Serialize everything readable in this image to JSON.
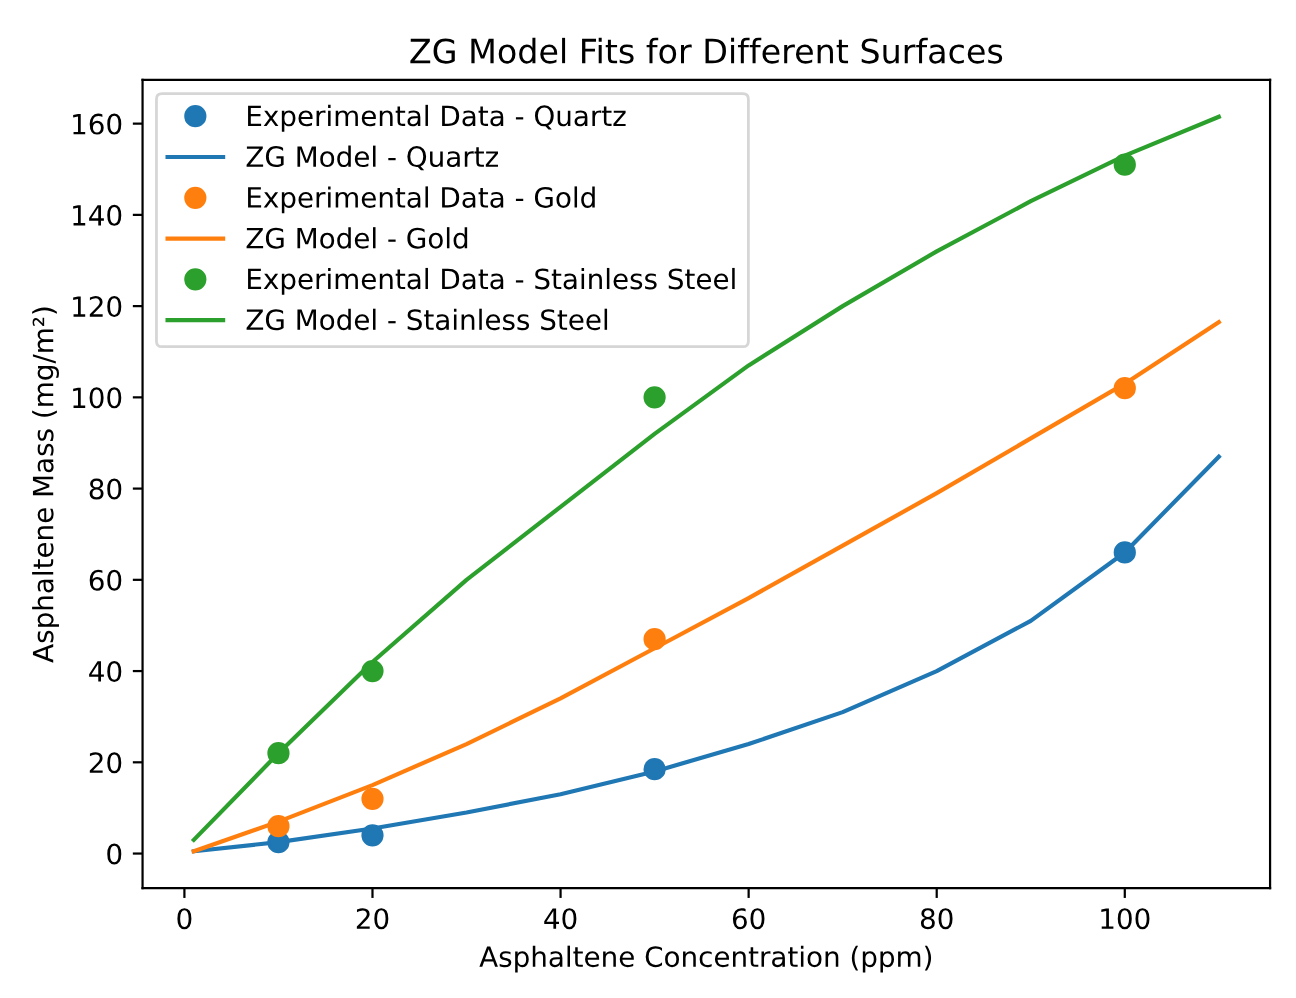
{
  "chart_data": {
    "type": "line",
    "title": "ZG Model Fits for Different Surfaces",
    "xlabel": "Asphaltene Concentration (ppm)",
    "ylabel": "Asphaltene Mass (mg/m²)",
    "xlim": [
      -4.45,
      115.45
    ],
    "ylim": [
      -7.6,
      169.6
    ],
    "xticks": [
      0,
      20,
      40,
      60,
      80,
      100
    ],
    "yticks": [
      0,
      20,
      40,
      60,
      80,
      100,
      120,
      140,
      160
    ],
    "grid": false,
    "legend": "top left",
    "series": [
      {
        "name": "Experimental Data - Quartz",
        "type": "scatter",
        "marker": "circle",
        "color": "#1f77b4",
        "x": [
          10,
          20,
          50,
          100
        ],
        "values": [
          2.5,
          4,
          18.5,
          66
        ]
      },
      {
        "name": "ZG Model - Quartz",
        "color": "#1f77b4",
        "x": [
          1,
          10,
          20,
          30,
          40,
          50,
          60,
          70,
          80,
          90,
          100,
          110
        ],
        "values": [
          0.5,
          2.5,
          5.5,
          9,
          13,
          18,
          24,
          31,
          40,
          51,
          66,
          87
        ]
      },
      {
        "name": "Experimental Data - Gold",
        "type": "scatter",
        "marker": "circle",
        "color": "#ff7f0e",
        "x": [
          10,
          20,
          50,
          100
        ],
        "values": [
          6,
          12,
          47,
          102
        ]
      },
      {
        "name": "ZG Model - Gold",
        "color": "#ff7f0e",
        "x": [
          1,
          10,
          20,
          30,
          40,
          50,
          60,
          70,
          80,
          90,
          100,
          110
        ],
        "values": [
          0.5,
          7,
          15,
          24,
          34,
          45,
          56,
          67.5,
          79,
          91,
          103,
          116.5
        ]
      },
      {
        "name": "Experimental Data - Stainless Steel",
        "type": "scatter",
        "marker": "circle",
        "color": "#2ca02c",
        "x": [
          10,
          20,
          50,
          100
        ],
        "values": [
          22,
          40,
          100,
          151
        ]
      },
      {
        "name": "ZG Model - Stainless Steel",
        "color": "#2ca02c",
        "x": [
          1,
          10,
          20,
          30,
          40,
          50,
          60,
          70,
          80,
          90,
          100,
          110
        ],
        "values": [
          3,
          22,
          42,
          60,
          76,
          92,
          107,
          120,
          132,
          143,
          153,
          161.5
        ]
      }
    ]
  }
}
